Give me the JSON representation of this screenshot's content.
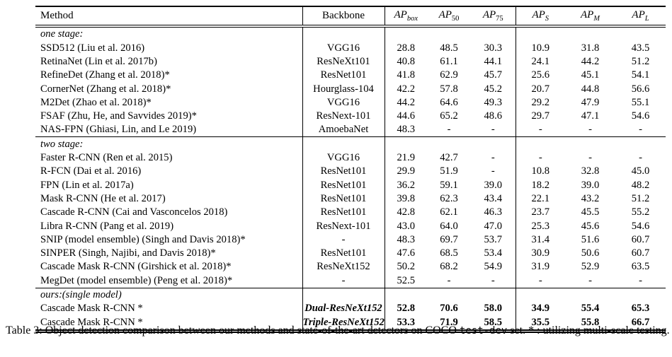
{
  "page": {
    "background": "#ffffff",
    "text_color": "#000000",
    "rule_color": "#000000"
  },
  "table": {
    "headers": [
      {
        "label": "Method"
      },
      {
        "label": "Backbone"
      },
      {
        "base": "AP",
        "sub": "box"
      },
      {
        "base": "AP",
        "sub": "50"
      },
      {
        "base": "AP",
        "sub": "75"
      },
      {
        "base": "AP",
        "sub": "S"
      },
      {
        "base": "AP",
        "sub": "M"
      },
      {
        "base": "AP",
        "sub": "L"
      }
    ],
    "sections": [
      {
        "label": "one stage:",
        "emphasis": false,
        "rows": [
          {
            "method": "SSD512 (Liu et al. 2016)",
            "backbone": "VGG16",
            "values": [
              "28.8",
              "48.5",
              "30.3",
              "10.9",
              "31.8",
              "43.5"
            ]
          },
          {
            "method": "RetinaNet (Lin et al. 2017b)",
            "backbone": "ResNeXt101",
            "values": [
              "40.8",
              "61.1",
              "44.1",
              "24.1",
              "44.2",
              "51.2"
            ]
          },
          {
            "method": "RefineDet (Zhang et al. 2018)*",
            "backbone": "ResNet101",
            "values": [
              "41.8",
              "62.9",
              "45.7",
              "25.6",
              "45.1",
              "54.1"
            ]
          },
          {
            "method": "CornerNet (Zhang et al. 2018)*",
            "backbone": "Hourglass-104",
            "values": [
              "42.2",
              "57.8",
              "45.2",
              "20.7",
              "44.8",
              "56.6"
            ]
          },
          {
            "method": "M2Det (Zhao et al. 2018)*",
            "backbone": "VGG16",
            "values": [
              "44.2",
              "64.6",
              "49.3",
              "29.2",
              "47.9",
              "55.1"
            ]
          },
          {
            "method": "FSAF (Zhu, He, and Savvides 2019)*",
            "backbone": "ResNext-101",
            "values": [
              "44.6",
              "65.2",
              "48.6",
              "29.7",
              "47.1",
              "54.6"
            ]
          },
          {
            "method": "NAS-FPN (Ghiasi, Lin, and Le 2019)",
            "backbone": "AmoebaNet",
            "values": [
              "48.3",
              "-",
              "-",
              "-",
              "-",
              "-"
            ]
          }
        ]
      },
      {
        "label": "two stage:",
        "emphasis": false,
        "rows": [
          {
            "method": "Faster R-CNN (Ren et al. 2015)",
            "backbone": "VGG16",
            "values": [
              "21.9",
              "42.7",
              "-",
              "-",
              "-",
              "-"
            ]
          },
          {
            "method": "R-FCN (Dai et al. 2016)",
            "backbone": "ResNet101",
            "values": [
              "29.9",
              "51.9",
              "-",
              "10.8",
              "32.8",
              "45.0"
            ]
          },
          {
            "method": "FPN (Lin et al. 2017a)",
            "backbone": "ResNet101",
            "values": [
              "36.2",
              "59.1",
              "39.0",
              "18.2",
              "39.0",
              "48.2"
            ]
          },
          {
            "method": "Mask R-CNN (He et al. 2017)",
            "backbone": "ResNet101",
            "values": [
              "39.8",
              "62.3",
              "43.4",
              "22.1",
              "43.2",
              "51.2"
            ]
          },
          {
            "method": "Cascade R-CNN (Cai and Vasconcelos 2018)",
            "backbone": "ResNet101",
            "values": [
              "42.8",
              "62.1",
              "46.3",
              "23.7",
              "45.5",
              "55.2"
            ]
          },
          {
            "method": "Libra R-CNN (Pang et al. 2019)",
            "backbone": "ResNext-101",
            "values": [
              "43.0",
              "64.0",
              "47.0",
              "25.3",
              "45.6",
              "54.6"
            ]
          },
          {
            "method": "SNIP (model ensemble) (Singh and Davis 2018)*",
            "backbone": "-",
            "values": [
              "48.3",
              "69.7",
              "53.7",
              "31.4",
              "51.6",
              "60.7"
            ]
          },
          {
            "method": "SINPER (Singh, Najibi, and Davis 2018)*",
            "backbone": "ResNet101",
            "values": [
              "47.6",
              "68.5",
              "53.4",
              "30.9",
              "50.6",
              "60.7"
            ]
          },
          {
            "method": "Cascade Mask R-CNN (Girshick et al. 2018)*",
            "backbone": "ResNeXt152",
            "values": [
              "50.2",
              "68.2",
              "54.9",
              "31.9",
              "52.9",
              "63.5"
            ]
          },
          {
            "method": "MegDet (model ensemble) (Peng et al. 2018)*",
            "backbone": "-",
            "values": [
              "52.5",
              "-",
              "-",
              "-",
              "-",
              "-"
            ]
          }
        ]
      },
      {
        "label": "ours:(single model)",
        "emphasis": true,
        "rows": [
          {
            "method": "Cascade Mask R-CNN *",
            "backbone": "Dual-ResNeXt152",
            "values": [
              "52.8",
              "70.6",
              "58.0",
              "34.9",
              "55.4",
              "65.3"
            ]
          },
          {
            "method": "Cascade Mask R-CNN *",
            "backbone": "Triple-ResNeXt152",
            "values": [
              "53.3",
              "71.9",
              "58.5",
              "35.5",
              "55.8",
              "66.7"
            ]
          }
        ]
      }
    ]
  },
  "caption": {
    "prefix": "Table 3: Object detection comparison between our methods and state-of-the-art detectors on COCO ",
    "code": "test-dev",
    "suffix": " set. * : utilizing multi-scale testing."
  }
}
